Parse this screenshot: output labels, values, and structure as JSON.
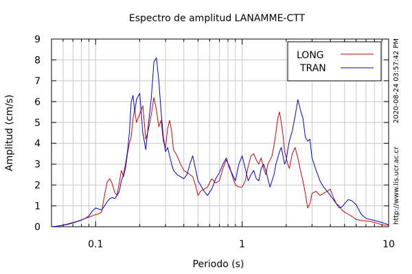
{
  "chart_data": {
    "type": "line",
    "title": "Espectro de amplitud LANAMME-CTT",
    "xlabel": "Periodo (s)",
    "ylabel": "Amplitud (cm/s)",
    "x_scale": "log",
    "xlim": [
      0.05,
      10
    ],
    "ylim": [
      0,
      9
    ],
    "x_ticks": [
      {
        "value": 0.1,
        "label": "0.1"
      },
      {
        "value": 1,
        "label": "1"
      },
      {
        "value": 10,
        "label": "10"
      }
    ],
    "y_ticks": [
      0,
      1,
      2,
      3,
      4,
      5,
      6,
      7,
      8,
      9
    ],
    "grid": true,
    "legend_position": "top-right",
    "side_texts": [
      "2020-08-24 03:57:42 PM",
      "http://www.lis.ucr.ac.cr"
    ],
    "series": [
      {
        "name": "LONG",
        "color": "#cc0000",
        "points": [
          [
            0.05,
            0.0
          ],
          [
            0.055,
            0.03
          ],
          [
            0.06,
            0.08
          ],
          [
            0.065,
            0.14
          ],
          [
            0.07,
            0.2
          ],
          [
            0.075,
            0.26
          ],
          [
            0.08,
            0.33
          ],
          [
            0.085,
            0.4
          ],
          [
            0.09,
            0.46
          ],
          [
            0.095,
            0.52
          ],
          [
            0.1,
            0.58
          ],
          [
            0.105,
            0.62
          ],
          [
            0.11,
            0.72
          ],
          [
            0.115,
            1.5
          ],
          [
            0.12,
            2.15
          ],
          [
            0.125,
            2.3
          ],
          [
            0.13,
            2.05
          ],
          [
            0.135,
            1.65
          ],
          [
            0.14,
            1.5
          ],
          [
            0.145,
            2.1
          ],
          [
            0.15,
            2.7
          ],
          [
            0.155,
            2.4
          ],
          [
            0.16,
            2.8
          ],
          [
            0.165,
            3.5
          ],
          [
            0.17,
            4.0
          ],
          [
            0.175,
            4.3
          ],
          [
            0.18,
            5.2
          ],
          [
            0.185,
            5.6
          ],
          [
            0.19,
            5.0
          ],
          [
            0.2,
            5.4
          ],
          [
            0.21,
            5.8
          ],
          [
            0.22,
            4.2
          ],
          [
            0.23,
            4.7
          ],
          [
            0.24,
            5.4
          ],
          [
            0.25,
            6.2
          ],
          [
            0.26,
            5.6
          ],
          [
            0.27,
            4.8
          ],
          [
            0.28,
            5.1
          ],
          [
            0.29,
            4.1
          ],
          [
            0.3,
            3.8
          ],
          [
            0.31,
            4.7
          ],
          [
            0.32,
            5.1
          ],
          [
            0.33,
            4.6
          ],
          [
            0.34,
            3.7
          ],
          [
            0.36,
            3.4
          ],
          [
            0.38,
            3.0
          ],
          [
            0.4,
            2.7
          ],
          [
            0.42,
            2.6
          ],
          [
            0.44,
            2.5
          ],
          [
            0.46,
            2.4
          ],
          [
            0.48,
            2.0
          ],
          [
            0.5,
            1.5
          ],
          [
            0.52,
            1.7
          ],
          [
            0.55,
            1.8
          ],
          [
            0.58,
            1.9
          ],
          [
            0.62,
            2.3
          ],
          [
            0.66,
            2.1
          ],
          [
            0.7,
            2.2
          ],
          [
            0.74,
            2.8
          ],
          [
            0.78,
            3.2
          ],
          [
            0.82,
            2.9
          ],
          [
            0.86,
            2.4
          ],
          [
            0.9,
            2.0
          ],
          [
            0.95,
            1.9
          ],
          [
            1.0,
            1.9
          ],
          [
            1.05,
            2.2
          ],
          [
            1.1,
            2.9
          ],
          [
            1.15,
            3.4
          ],
          [
            1.2,
            3.5
          ],
          [
            1.25,
            3.2
          ],
          [
            1.3,
            3.0
          ],
          [
            1.35,
            3.3
          ],
          [
            1.4,
            2.8
          ],
          [
            1.45,
            2.5
          ],
          [
            1.5,
            3.0
          ],
          [
            1.55,
            3.2
          ],
          [
            1.6,
            3.4
          ],
          [
            1.65,
            3.9
          ],
          [
            1.7,
            4.5
          ],
          [
            1.75,
            5.2
          ],
          [
            1.8,
            5.5
          ],
          [
            1.85,
            5.0
          ],
          [
            1.9,
            4.4
          ],
          [
            1.95,
            3.6
          ],
          [
            2.0,
            3.3
          ],
          [
            2.05,
            3.0
          ],
          [
            2.1,
            2.8
          ],
          [
            2.2,
            3.5
          ],
          [
            2.3,
            3.8
          ],
          [
            2.4,
            3.3
          ],
          [
            2.5,
            2.7
          ],
          [
            2.6,
            2.2
          ],
          [
            2.7,
            1.6
          ],
          [
            2.8,
            0.9
          ],
          [
            2.9,
            1.1
          ],
          [
            3.0,
            1.6
          ],
          [
            3.2,
            1.7
          ],
          [
            3.4,
            1.5
          ],
          [
            3.6,
            1.6
          ],
          [
            3.8,
            1.7
          ],
          [
            4.0,
            1.8
          ],
          [
            4.2,
            1.4
          ],
          [
            4.4,
            1.1
          ],
          [
            4.6,
            1.0
          ],
          [
            4.8,
            0.8
          ],
          [
            5.0,
            0.7
          ],
          [
            5.3,
            0.6
          ],
          [
            5.6,
            0.5
          ],
          [
            6.0,
            0.35
          ],
          [
            6.5,
            0.3
          ],
          [
            7.0,
            0.28
          ],
          [
            7.5,
            0.25
          ],
          [
            8.0,
            0.2
          ],
          [
            8.5,
            0.15
          ],
          [
            9.0,
            0.1
          ],
          [
            9.5,
            0.08
          ],
          [
            10.0,
            0.06
          ]
        ]
      },
      {
        "name": "TRAN",
        "color": "#0000cc",
        "points": [
          [
            0.05,
            0.0
          ],
          [
            0.055,
            0.03
          ],
          [
            0.06,
            0.07
          ],
          [
            0.065,
            0.12
          ],
          [
            0.07,
            0.18
          ],
          [
            0.075,
            0.25
          ],
          [
            0.08,
            0.32
          ],
          [
            0.085,
            0.4
          ],
          [
            0.09,
            0.52
          ],
          [
            0.095,
            0.75
          ],
          [
            0.1,
            0.9
          ],
          [
            0.105,
            0.85
          ],
          [
            0.11,
            0.8
          ],
          [
            0.115,
            1.0
          ],
          [
            0.12,
            1.2
          ],
          [
            0.125,
            1.35
          ],
          [
            0.13,
            1.4
          ],
          [
            0.135,
            1.35
          ],
          [
            0.14,
            1.5
          ],
          [
            0.145,
            1.7
          ],
          [
            0.15,
            2.2
          ],
          [
            0.155,
            2.5
          ],
          [
            0.16,
            3.0
          ],
          [
            0.165,
            3.6
          ],
          [
            0.17,
            4.5
          ],
          [
            0.175,
            6.0
          ],
          [
            0.18,
            6.3
          ],
          [
            0.185,
            5.5
          ],
          [
            0.19,
            6.1
          ],
          [
            0.2,
            6.4
          ],
          [
            0.21,
            4.5
          ],
          [
            0.22,
            3.7
          ],
          [
            0.23,
            5.0
          ],
          [
            0.24,
            6.2
          ],
          [
            0.25,
            7.9
          ],
          [
            0.26,
            8.1
          ],
          [
            0.27,
            7.0
          ],
          [
            0.28,
            5.5
          ],
          [
            0.29,
            4.3
          ],
          [
            0.3,
            3.6
          ],
          [
            0.31,
            3.8
          ],
          [
            0.32,
            3.4
          ],
          [
            0.33,
            3.0
          ],
          [
            0.34,
            2.7
          ],
          [
            0.36,
            2.5
          ],
          [
            0.38,
            2.4
          ],
          [
            0.4,
            2.3
          ],
          [
            0.42,
            2.5
          ],
          [
            0.44,
            3.0
          ],
          [
            0.46,
            3.4
          ],
          [
            0.48,
            2.8
          ],
          [
            0.5,
            2.2
          ],
          [
            0.52,
            2.0
          ],
          [
            0.55,
            1.7
          ],
          [
            0.58,
            1.5
          ],
          [
            0.62,
            1.8
          ],
          [
            0.66,
            2.3
          ],
          [
            0.7,
            2.6
          ],
          [
            0.74,
            3.0
          ],
          [
            0.78,
            3.3
          ],
          [
            0.82,
            2.8
          ],
          [
            0.86,
            2.5
          ],
          [
            0.9,
            2.2
          ],
          [
            0.95,
            3.0
          ],
          [
            1.0,
            3.4
          ],
          [
            1.05,
            2.8
          ],
          [
            1.1,
            2.2
          ],
          [
            1.15,
            2.5
          ],
          [
            1.2,
            2.7
          ],
          [
            1.25,
            2.3
          ],
          [
            1.3,
            2.2
          ],
          [
            1.35,
            2.8
          ],
          [
            1.4,
            3.0
          ],
          [
            1.45,
            2.7
          ],
          [
            1.5,
            2.3
          ],
          [
            1.55,
            1.9
          ],
          [
            1.6,
            2.2
          ],
          [
            1.65,
            2.5
          ],
          [
            1.7,
            3.0
          ],
          [
            1.75,
            3.3
          ],
          [
            1.8,
            3.6
          ],
          [
            1.85,
            3.8
          ],
          [
            1.9,
            3.4
          ],
          [
            1.95,
            3.0
          ],
          [
            2.0,
            3.2
          ],
          [
            2.05,
            3.7
          ],
          [
            2.1,
            4.1
          ],
          [
            2.2,
            4.6
          ],
          [
            2.3,
            5.3
          ],
          [
            2.4,
            6.1
          ],
          [
            2.5,
            5.6
          ],
          [
            2.6,
            5.2
          ],
          [
            2.7,
            4.3
          ],
          [
            2.8,
            4.1
          ],
          [
            2.9,
            4.2
          ],
          [
            3.0,
            3.3
          ],
          [
            3.2,
            2.7
          ],
          [
            3.4,
            2.2
          ],
          [
            3.6,
            1.9
          ],
          [
            3.8,
            1.7
          ],
          [
            4.0,
            1.5
          ],
          [
            4.2,
            1.3
          ],
          [
            4.4,
            1.1
          ],
          [
            4.6,
            0.9
          ],
          [
            4.8,
            0.95
          ],
          [
            5.0,
            1.1
          ],
          [
            5.3,
            1.3
          ],
          [
            5.6,
            1.25
          ],
          [
            6.0,
            1.05
          ],
          [
            6.5,
            0.6
          ],
          [
            7.0,
            0.4
          ],
          [
            7.5,
            0.35
          ],
          [
            8.0,
            0.3
          ],
          [
            8.5,
            0.25
          ],
          [
            9.0,
            0.2
          ],
          [
            9.5,
            0.15
          ],
          [
            10.0,
            0.1
          ]
        ]
      }
    ]
  }
}
